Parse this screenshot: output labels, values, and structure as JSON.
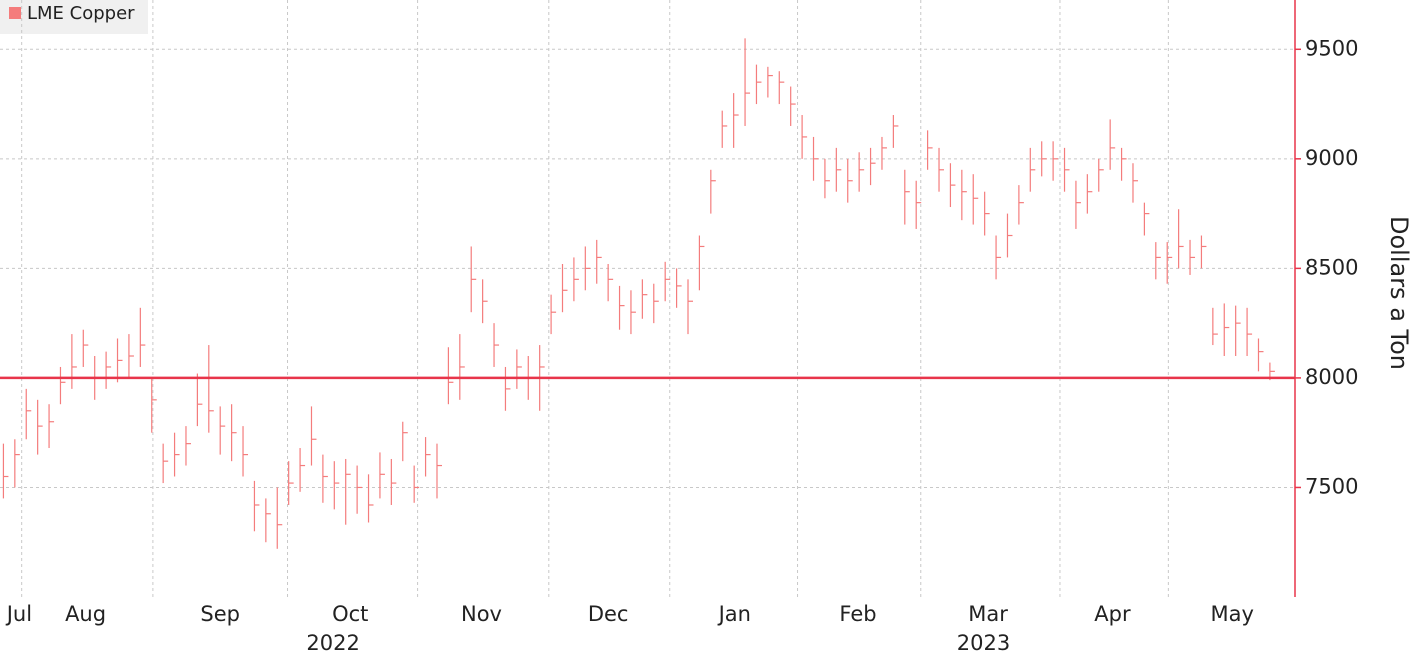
{
  "chart_data": {
    "type": "ohlc",
    "y_axis_label": "Dollars a Ton",
    "ylim": [
      7000,
      9725
    ],
    "yticks": [
      7500,
      8000,
      8500,
      9000,
      9500
    ],
    "xlim": [
      -0.3,
      113.2
    ],
    "xticks": [
      {
        "value": 1.4,
        "label": "Jul"
      },
      {
        "value": 7.2,
        "label": "Aug"
      },
      {
        "value": 19.0,
        "label": "Sep"
      },
      {
        "value": 30.4,
        "label": "Oct"
      },
      {
        "value": 41.9,
        "label": "Nov"
      },
      {
        "value": 53.0,
        "label": "Dec"
      },
      {
        "value": 64.1,
        "label": "Jan"
      },
      {
        "value": 74.9,
        "label": "Feb"
      },
      {
        "value": 86.3,
        "label": "Mar"
      },
      {
        "value": 97.2,
        "label": "Apr"
      },
      {
        "value": 107.7,
        "label": "May"
      }
    ],
    "xgrid": [
      1.6,
      13.1,
      24.9,
      36.3,
      47.8,
      58.4,
      69.6,
      80.4,
      92.6,
      102.1
    ],
    "year_labels": [
      {
        "text": "2022",
        "x": 28.9
      },
      {
        "text": "2023",
        "x": 85.9
      }
    ],
    "grid": true,
    "reference_line": {
      "value": 8000,
      "color": "#e8354a"
    },
    "x": [
      0,
      1,
      2,
      3,
      4,
      5,
      6,
      7,
      8,
      9,
      10,
      11,
      12,
      13,
      14,
      15,
      16,
      17,
      18,
      19,
      20,
      21,
      22,
      23,
      24,
      25,
      26,
      27,
      28,
      29,
      30,
      31,
      32,
      33,
      34,
      35,
      36,
      37,
      38,
      39,
      40,
      41,
      42,
      43,
      44,
      45,
      46,
      47,
      48,
      49,
      50,
      51,
      52,
      53,
      54,
      55,
      56,
      57,
      58,
      59,
      60,
      61,
      62,
      63,
      64,
      65,
      66,
      67,
      68,
      69,
      70,
      71,
      72,
      73,
      74,
      75,
      76,
      77,
      78,
      79,
      80,
      81,
      82,
      83,
      84,
      85,
      86,
      87,
      88,
      89,
      90,
      91,
      92,
      93,
      94,
      95,
      96,
      97,
      98,
      99,
      100,
      101,
      102,
      103,
      104,
      105,
      106,
      107,
      108,
      109,
      110,
      111
    ],
    "series": [
      {
        "name": "LME Copper",
        "color": "#f47c7c",
        "high": [
          7700,
          7720,
          7950,
          7900,
          7880,
          8050,
          8200,
          8220,
          8100,
          8120,
          8180,
          8200,
          8320,
          8000,
          7700,
          7750,
          7780,
          8020,
          8150,
          7870,
          7880,
          7780,
          7530,
          7450,
          7500,
          7620,
          7680,
          7870,
          7650,
          7620,
          7630,
          7600,
          7560,
          7660,
          7630,
          7800,
          7600,
          7730,
          7700,
          8140,
          8200,
          8600,
          8450,
          8250,
          8050,
          8130,
          8100,
          8150,
          8380,
          8520,
          8550,
          8600,
          8630,
          8520,
          8420,
          8400,
          8450,
          8430,
          8530,
          8500,
          8450,
          8650,
          8950,
          9220,
          9300,
          9550,
          9430,
          9420,
          9400,
          9330,
          9200,
          9100,
          9000,
          9050,
          9000,
          9030,
          9050,
          9100,
          9200,
          8950,
          8900,
          9130,
          9050,
          8980,
          8950,
          8930,
          8850,
          8650,
          8750,
          8880,
          9050,
          9080,
          9080,
          9050,
          8900,
          8930,
          9000,
          9180,
          9050,
          8980,
          8800,
          8620,
          8620,
          8770,
          8630,
          8650,
          8320,
          8340,
          8330,
          8320,
          8180,
          8070
        ],
        "low": [
          7450,
          7500,
          7720,
          7650,
          7680,
          7880,
          7950,
          8050,
          7900,
          7950,
          7980,
          8000,
          8050,
          7750,
          7520,
          7550,
          7600,
          7780,
          7750,
          7650,
          7620,
          7550,
          7300,
          7250,
          7220,
          7420,
          7480,
          7600,
          7430,
          7400,
          7330,
          7380,
          7340,
          7450,
          7420,
          7620,
          7430,
          7550,
          7450,
          7880,
          7900,
          8300,
          8250,
          8050,
          7850,
          7950,
          7900,
          7850,
          8200,
          8300,
          8350,
          8400,
          8430,
          8350,
          8220,
          8200,
          8270,
          8250,
          8350,
          8320,
          8200,
          8400,
          8750,
          9050,
          9050,
          9150,
          9250,
          9280,
          9250,
          9150,
          9000,
          8900,
          8820,
          8850,
          8800,
          8850,
          8880,
          8950,
          9050,
          8700,
          8680,
          8950,
          8850,
          8780,
          8720,
          8700,
          8650,
          8450,
          8550,
          8700,
          8850,
          8920,
          8900,
          8850,
          8680,
          8750,
          8850,
          8950,
          8900,
          8800,
          8650,
          8450,
          8430,
          8500,
          8470,
          8500,
          8150,
          8100,
          8100,
          8100,
          8030,
          7990
        ],
        "close": [
          7550,
          7650,
          7850,
          7780,
          7800,
          7980,
          8050,
          8150,
          8000,
          8050,
          8080,
          8100,
          8150,
          7900,
          7620,
          7650,
          7700,
          7880,
          7850,
          7780,
          7750,
          7650,
          7420,
          7380,
          7330,
          7520,
          7600,
          7720,
          7550,
          7520,
          7560,
          7500,
          7420,
          7560,
          7520,
          7750,
          7500,
          7650,
          7600,
          7980,
          8050,
          8450,
          8350,
          8150,
          7950,
          8050,
          8000,
          8050,
          8300,
          8400,
          8450,
          8500,
          8550,
          8450,
          8330,
          8300,
          8380,
          8350,
          8450,
          8420,
          8350,
          8600,
          8900,
          9150,
          9200,
          9300,
          9350,
          9380,
          9350,
          9250,
          9100,
          9000,
          8900,
          8950,
          8900,
          8950,
          8980,
          9050,
          9150,
          8850,
          8800,
          9050,
          8950,
          8880,
          8850,
          8820,
          8750,
          8550,
          8650,
          8800,
          8950,
          9000,
          9000,
          8950,
          8800,
          8850,
          8950,
          9050,
          9000,
          8900,
          8750,
          8550,
          8550,
          8600,
          8550,
          8600,
          8200,
          8230,
          8250,
          8200,
          8120,
          8030
        ]
      }
    ]
  }
}
